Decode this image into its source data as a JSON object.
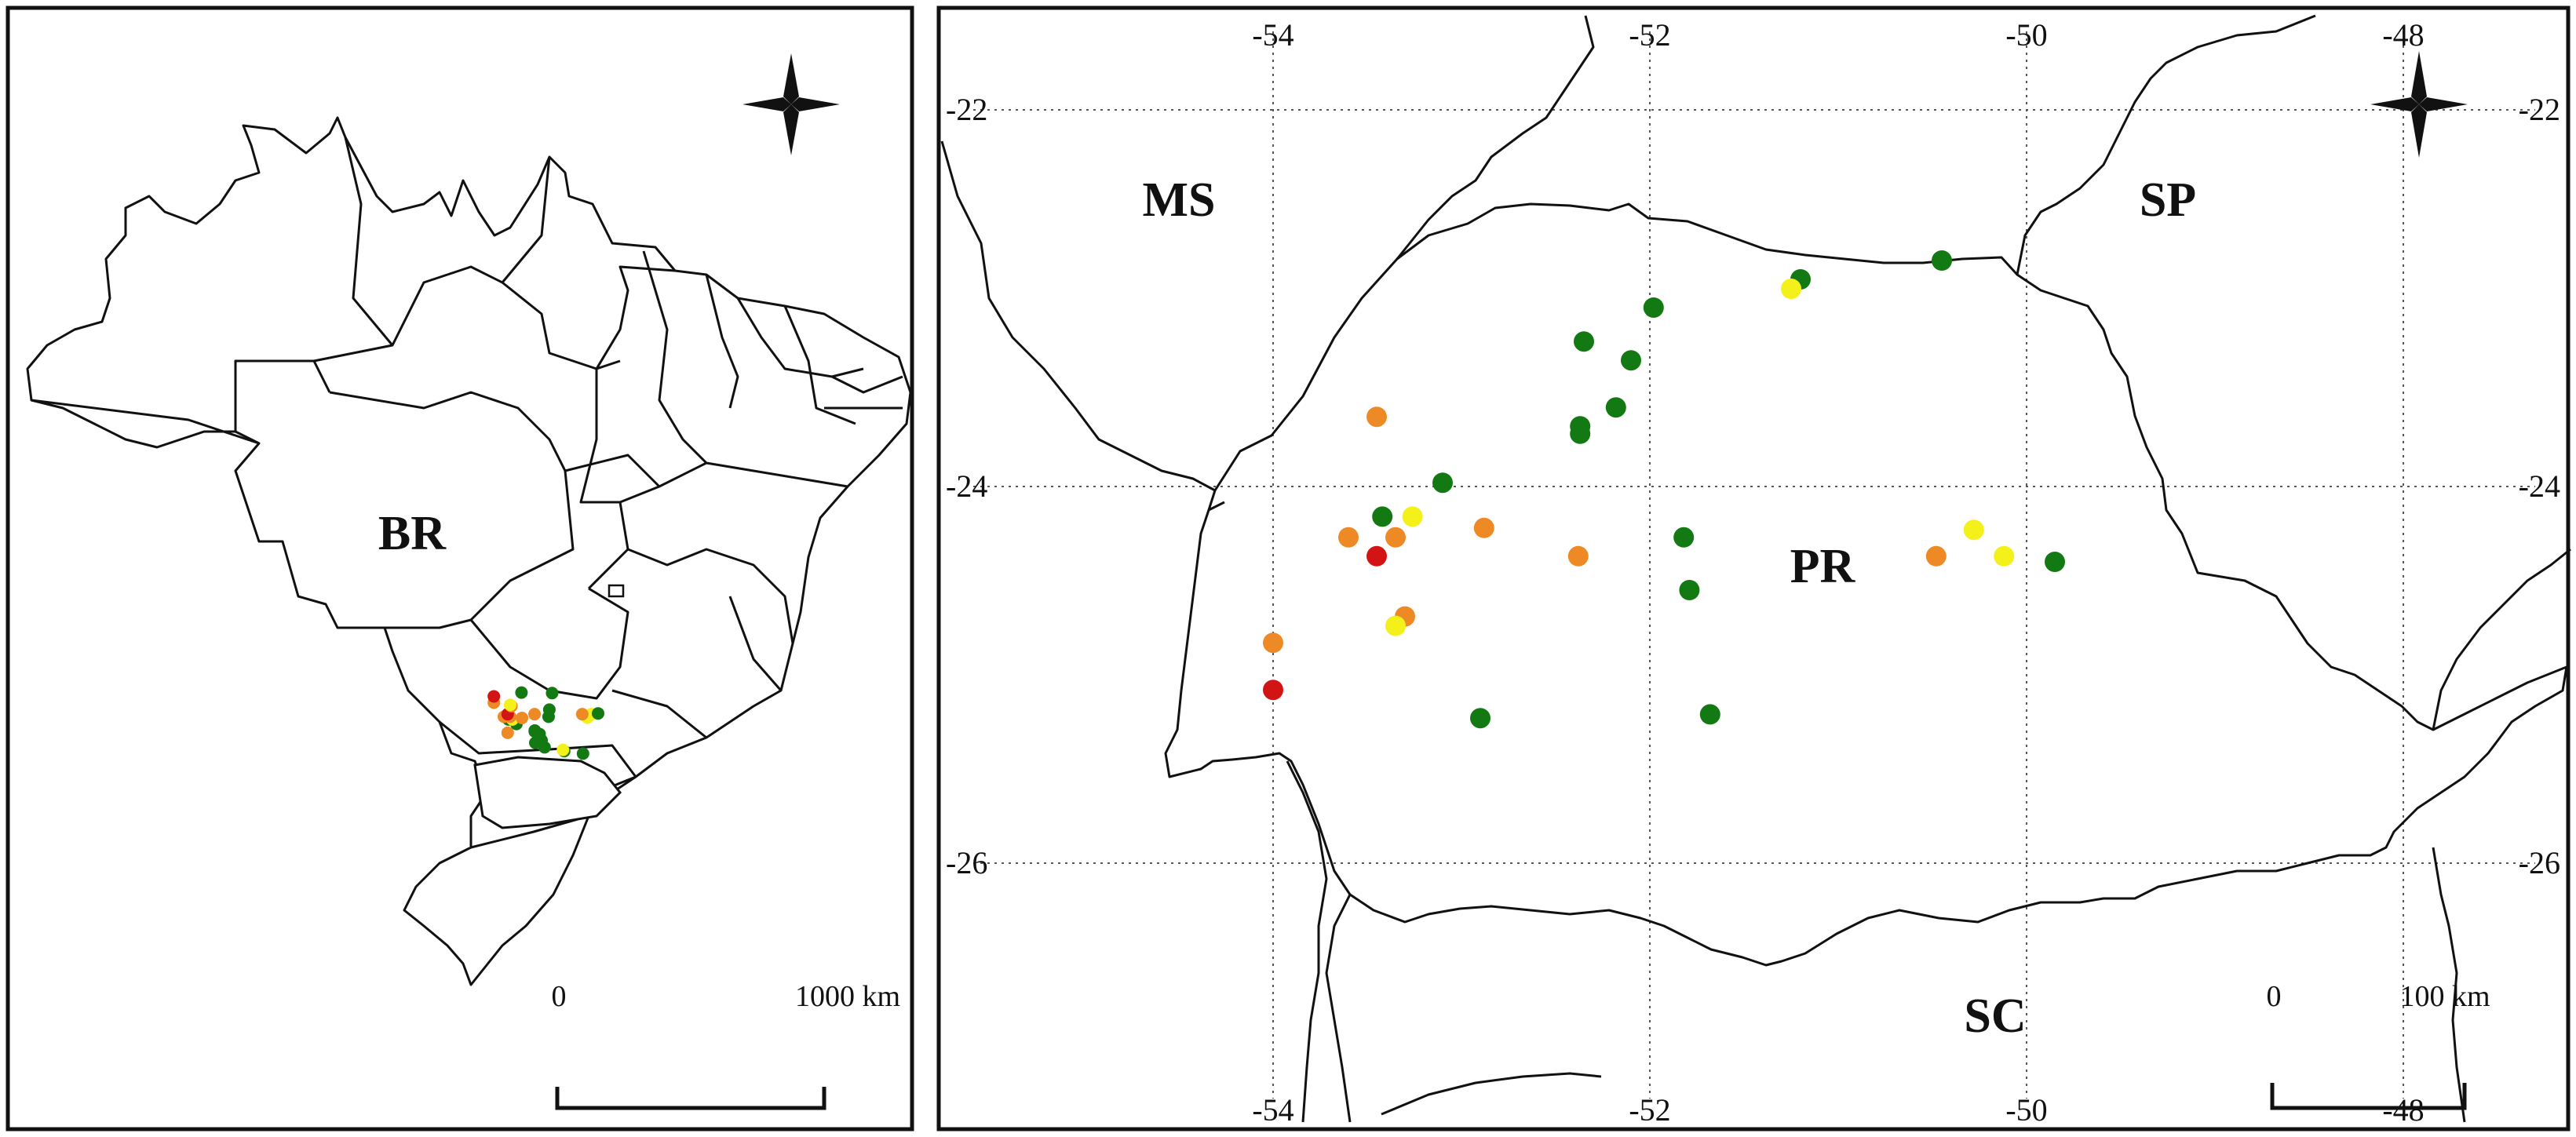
{
  "overview_map": {
    "label": "BR",
    "scale": {
      "start": "0",
      "end": "1000 km"
    }
  },
  "detail_map": {
    "longitude_ticks": [
      "-54",
      "-52",
      "-50",
      "-48"
    ],
    "latitude_ticks": [
      "-22",
      "-24",
      "-26"
    ],
    "regions": [
      {
        "id": "ms",
        "label": "MS"
      },
      {
        "id": "sp",
        "label": "SP"
      },
      {
        "id": "pr",
        "label": "PR"
      },
      {
        "id": "sc",
        "label": "SC"
      }
    ],
    "scale": {
      "start": "0",
      "end": "100 km"
    }
  },
  "colors": {
    "green": "#137a13",
    "yellow": "#f4f11a",
    "orange": "#ee8a25",
    "red": "#d21414"
  },
  "points": [
    {
      "lon": -51.2,
      "lat": -22.9,
      "color": "green"
    },
    {
      "lon": -50.45,
      "lat": -22.8,
      "color": "green"
    },
    {
      "lon": -51.25,
      "lat": -22.95,
      "color": "yellow"
    },
    {
      "lon": -51.98,
      "lat": -23.05,
      "color": "green"
    },
    {
      "lon": -52.35,
      "lat": -23.23,
      "color": "green"
    },
    {
      "lon": -52.1,
      "lat": -23.33,
      "color": "green"
    },
    {
      "lon": -52.18,
      "lat": -23.58,
      "color": "green"
    },
    {
      "lon": -52.37,
      "lat": -23.68,
      "color": "green"
    },
    {
      "lon": -52.37,
      "lat": -23.72,
      "color": "green"
    },
    {
      "lon": -53.1,
      "lat": -23.98,
      "color": "green"
    },
    {
      "lon": -53.45,
      "lat": -23.63,
      "color": "orange"
    },
    {
      "lon": -53.42,
      "lat": -24.16,
      "color": "green"
    },
    {
      "lon": -53.26,
      "lat": -24.16,
      "color": "yellow"
    },
    {
      "lon": -53.6,
      "lat": -24.27,
      "color": "orange"
    },
    {
      "lon": -53.35,
      "lat": -24.27,
      "color": "orange"
    },
    {
      "lon": -52.88,
      "lat": -24.22,
      "color": "orange"
    },
    {
      "lon": -53.45,
      "lat": -24.37,
      "color": "red"
    },
    {
      "lon": -51.82,
      "lat": -24.27,
      "color": "green"
    },
    {
      "lon": -52.38,
      "lat": -24.37,
      "color": "orange"
    },
    {
      "lon": -50.28,
      "lat": -24.23,
      "color": "yellow"
    },
    {
      "lon": -50.12,
      "lat": -24.37,
      "color": "yellow"
    },
    {
      "lon": -50.48,
      "lat": -24.37,
      "color": "orange"
    },
    {
      "lon": -49.85,
      "lat": -24.4,
      "color": "green"
    },
    {
      "lon": -51.79,
      "lat": -24.55,
      "color": "green"
    },
    {
      "lon": -53.3,
      "lat": -24.69,
      "color": "orange"
    },
    {
      "lon": -53.35,
      "lat": -24.74,
      "color": "yellow"
    },
    {
      "lon": -54.0,
      "lat": -24.83,
      "color": "orange"
    },
    {
      "lon": -54.0,
      "lat": -25.08,
      "color": "red"
    },
    {
      "lon": -52.9,
      "lat": -25.23,
      "color": "green"
    },
    {
      "lon": -51.68,
      "lat": -25.21,
      "color": "green"
    }
  ]
}
